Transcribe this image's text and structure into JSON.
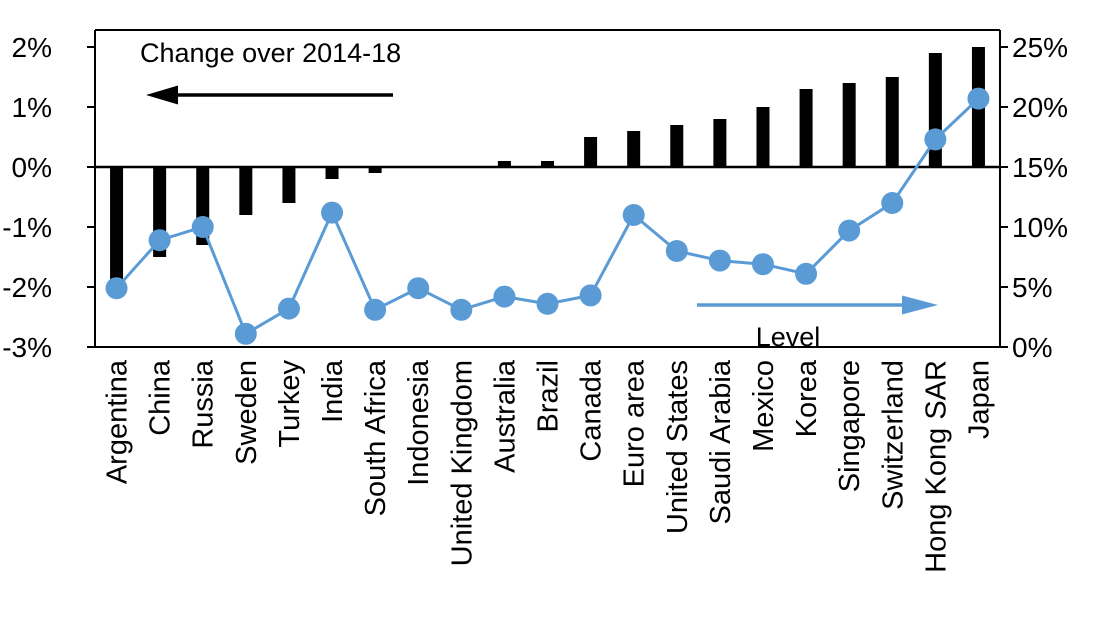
{
  "chart_data": {
    "type": "bar+line",
    "title": "",
    "categories": [
      "Argentina",
      "China",
      "Russia",
      "Sweden",
      "Turkey",
      "India",
      "South Africa",
      "Indonesia",
      "United Kingdom",
      "Australia",
      "Brazil",
      "Canada",
      "Euro area",
      "United States",
      "Saudi Arabia",
      "Mexico",
      "Korea",
      "Singapore",
      "Switzerland",
      "Hong Kong SAR",
      "Japan"
    ],
    "series": [
      {
        "name": "Change over 2014-18",
        "type": "bar",
        "axis": "left",
        "color": "#000000",
        "values": [
          -2.0,
          -1.5,
          -1.3,
          -0.8,
          -0.6,
          -0.2,
          -0.1,
          0.0,
          0.0,
          0.1,
          0.1,
          0.5,
          0.6,
          0.7,
          0.8,
          1.0,
          1.3,
          1.4,
          1.5,
          1.9,
          2.0
        ]
      },
      {
        "name": "Level",
        "type": "line",
        "axis": "right",
        "color": "#5b9bd5",
        "values": [
          4.9,
          8.9,
          10.0,
          1.1,
          3.2,
          11.2,
          3.1,
          4.9,
          3.1,
          4.2,
          3.6,
          4.3,
          11.0,
          8.0,
          7.2,
          6.9,
          6.1,
          9.7,
          12.0,
          17.3,
          20.7
        ]
      }
    ],
    "left_axis": {
      "min": -3,
      "max": 2,
      "step": 1,
      "ticks": [
        "2%",
        "1%",
        "0%",
        "-1%",
        "-2%",
        "-3%"
      ]
    },
    "right_axis": {
      "min": 0,
      "max": 25,
      "step": 5,
      "ticks": [
        "25%",
        "20%",
        "15%",
        "10%",
        "5%",
        "0%"
      ]
    },
    "annotations": [
      {
        "text": "Change over 2014-18",
        "arrow": "left",
        "color": "#000000"
      },
      {
        "text": "Level",
        "arrow": "right",
        "color": "#5b9bd5"
      }
    ],
    "grid": false,
    "legend": "none"
  },
  "colors": {
    "bar": "#000000",
    "line": "#5b9bd5",
    "marker": "#5b9bd5",
    "axis": "#000000",
    "text": "#000000",
    "background": "#ffffff"
  }
}
